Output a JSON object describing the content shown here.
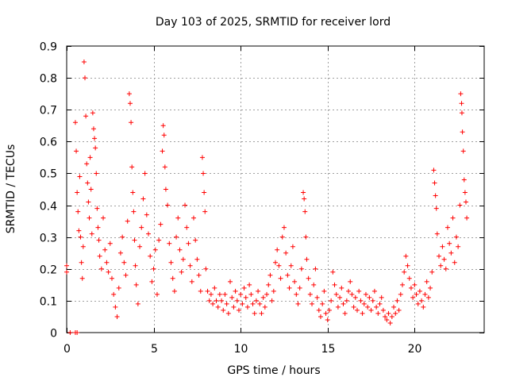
{
  "chart_data": {
    "type": "scatter",
    "title": "Day 103 of 2025, SRMTID for receiver lord",
    "xlabel": "GPS time / hours",
    "ylabel": "SRMTID / TECUs",
    "xlim": [
      0,
      24
    ],
    "ylim": [
      0,
      0.9
    ],
    "xticks": [
      0,
      5,
      10,
      15,
      20
    ],
    "yticks": [
      0,
      0.1,
      0.2,
      0.3,
      0.4,
      0.5,
      0.6,
      0.7,
      0.8,
      0.9
    ],
    "grid": true,
    "legend": "none",
    "marker": "+",
    "color": "#ff0000",
    "series": [
      {
        "name": "SRMTID",
        "points": [
          [
            0.0,
            0.21
          ],
          [
            0.0,
            0.19
          ],
          [
            0.2,
            0.0
          ],
          [
            0.5,
            0.0
          ],
          [
            0.6,
            0.0
          ],
          [
            0.5,
            0.66
          ],
          [
            0.55,
            0.57
          ],
          [
            0.6,
            0.44
          ],
          [
            0.65,
            0.38
          ],
          [
            0.7,
            0.32
          ],
          [
            0.75,
            0.49
          ],
          [
            0.8,
            0.3
          ],
          [
            0.85,
            0.22
          ],
          [
            0.9,
            0.17
          ],
          [
            0.95,
            0.27
          ],
          [
            1.0,
            0.85
          ],
          [
            1.05,
            0.8
          ],
          [
            1.1,
            0.68
          ],
          [
            1.15,
            0.53
          ],
          [
            1.2,
            0.47
          ],
          [
            1.25,
            0.41
          ],
          [
            1.3,
            0.36
          ],
          [
            1.35,
            0.55
          ],
          [
            1.4,
            0.45
          ],
          [
            1.45,
            0.31
          ],
          [
            1.5,
            0.69
          ],
          [
            1.55,
            0.64
          ],
          [
            1.6,
            0.61
          ],
          [
            1.65,
            0.58
          ],
          [
            1.7,
            0.5
          ],
          [
            1.75,
            0.39
          ],
          [
            1.8,
            0.33
          ],
          [
            1.85,
            0.29
          ],
          [
            1.9,
            0.24
          ],
          [
            2.0,
            0.2
          ],
          [
            2.1,
            0.36
          ],
          [
            2.2,
            0.26
          ],
          [
            2.3,
            0.22
          ],
          [
            2.4,
            0.19
          ],
          [
            2.5,
            0.28
          ],
          [
            2.6,
            0.17
          ],
          [
            2.7,
            0.12
          ],
          [
            2.8,
            0.08
          ],
          [
            2.9,
            0.05
          ],
          [
            3.0,
            0.14
          ],
          [
            3.1,
            0.25
          ],
          [
            3.2,
            0.3
          ],
          [
            3.3,
            0.22
          ],
          [
            3.4,
            0.18
          ],
          [
            3.5,
            0.35
          ],
          [
            3.6,
            0.75
          ],
          [
            3.65,
            0.72
          ],
          [
            3.7,
            0.66
          ],
          [
            3.75,
            0.52
          ],
          [
            3.8,
            0.44
          ],
          [
            3.85,
            0.38
          ],
          [
            3.9,
            0.29
          ],
          [
            3.95,
            0.21
          ],
          [
            4.0,
            0.15
          ],
          [
            4.1,
            0.09
          ],
          [
            4.2,
            0.27
          ],
          [
            4.3,
            0.33
          ],
          [
            4.4,
            0.42
          ],
          [
            4.5,
            0.5
          ],
          [
            4.6,
            0.37
          ],
          [
            4.7,
            0.31
          ],
          [
            4.8,
            0.24
          ],
          [
            4.9,
            0.16
          ],
          [
            5.0,
            0.2
          ],
          [
            5.1,
            0.26
          ],
          [
            5.2,
            0.12
          ],
          [
            5.3,
            0.29
          ],
          [
            5.4,
            0.34
          ],
          [
            5.5,
            0.57
          ],
          [
            5.55,
            0.65
          ],
          [
            5.6,
            0.62
          ],
          [
            5.65,
            0.52
          ],
          [
            5.7,
            0.45
          ],
          [
            5.8,
            0.4
          ],
          [
            5.9,
            0.28
          ],
          [
            6.0,
            0.22
          ],
          [
            6.1,
            0.17
          ],
          [
            6.2,
            0.13
          ],
          [
            6.3,
            0.3
          ],
          [
            6.4,
            0.36
          ],
          [
            6.5,
            0.26
          ],
          [
            6.6,
            0.19
          ],
          [
            6.7,
            0.23
          ],
          [
            6.8,
            0.4
          ],
          [
            6.9,
            0.33
          ],
          [
            7.0,
            0.28
          ],
          [
            7.1,
            0.21
          ],
          [
            7.2,
            0.16
          ],
          [
            7.3,
            0.36
          ],
          [
            7.4,
            0.29
          ],
          [
            7.5,
            0.23
          ],
          [
            7.6,
            0.18
          ],
          [
            7.7,
            0.13
          ],
          [
            7.8,
            0.55
          ],
          [
            7.85,
            0.5
          ],
          [
            7.9,
            0.44
          ],
          [
            7.95,
            0.38
          ],
          [
            8.0,
            0.2
          ],
          [
            8.1,
            0.13
          ],
          [
            8.2,
            0.1
          ],
          [
            8.3,
            0.12
          ],
          [
            8.4,
            0.09
          ],
          [
            8.5,
            0.14
          ],
          [
            8.6,
            0.1
          ],
          [
            8.7,
            0.08
          ],
          [
            8.8,
            0.12
          ],
          [
            8.9,
            0.1
          ],
          [
            9.0,
            0.07
          ],
          [
            9.1,
            0.12
          ],
          [
            9.2,
            0.09
          ],
          [
            9.3,
            0.06
          ],
          [
            9.4,
            0.16
          ],
          [
            9.5,
            0.11
          ],
          [
            9.6,
            0.08
          ],
          [
            9.7,
            0.13
          ],
          [
            9.8,
            0.1
          ],
          [
            9.9,
            0.07
          ],
          [
            10.0,
            0.12
          ],
          [
            10.1,
            0.09
          ],
          [
            10.2,
            0.14
          ],
          [
            10.3,
            0.11
          ],
          [
            10.4,
            0.08
          ],
          [
            10.5,
            0.15
          ],
          [
            10.6,
            0.12
          ],
          [
            10.7,
            0.09
          ],
          [
            10.8,
            0.06
          ],
          [
            10.9,
            0.1
          ],
          [
            11.0,
            0.13
          ],
          [
            11.1,
            0.09
          ],
          [
            11.2,
            0.06
          ],
          [
            11.3,
            0.11
          ],
          [
            11.4,
            0.08
          ],
          [
            11.5,
            0.12
          ],
          [
            11.6,
            0.15
          ],
          [
            11.7,
            0.18
          ],
          [
            11.8,
            0.1
          ],
          [
            11.9,
            0.13
          ],
          [
            12.0,
            0.22
          ],
          [
            12.1,
            0.26
          ],
          [
            12.2,
            0.21
          ],
          [
            12.3,
            0.17
          ],
          [
            12.4,
            0.3
          ],
          [
            12.5,
            0.33
          ],
          [
            12.6,
            0.25
          ],
          [
            12.7,
            0.18
          ],
          [
            12.8,
            0.14
          ],
          [
            12.9,
            0.21
          ],
          [
            13.0,
            0.27
          ],
          [
            13.1,
            0.16
          ],
          [
            13.2,
            0.12
          ],
          [
            13.3,
            0.09
          ],
          [
            13.4,
            0.14
          ],
          [
            13.5,
            0.2
          ],
          [
            13.6,
            0.44
          ],
          [
            13.65,
            0.42
          ],
          [
            13.7,
            0.38
          ],
          [
            13.75,
            0.3
          ],
          [
            13.8,
            0.23
          ],
          [
            13.9,
            0.17
          ],
          [
            14.0,
            0.12
          ],
          [
            14.1,
            0.09
          ],
          [
            14.2,
            0.15
          ],
          [
            14.3,
            0.2
          ],
          [
            14.4,
            0.11
          ],
          [
            14.5,
            0.07
          ],
          [
            14.6,
            0.05
          ],
          [
            14.7,
            0.09
          ],
          [
            14.8,
            0.13
          ],
          [
            14.9,
            0.06
          ],
          [
            15.0,
            0.04
          ],
          [
            15.1,
            0.07
          ],
          [
            15.2,
            0.1
          ],
          [
            15.3,
            0.19
          ],
          [
            15.4,
            0.15
          ],
          [
            15.5,
            0.12
          ],
          [
            15.6,
            0.08
          ],
          [
            15.7,
            0.11
          ],
          [
            15.8,
            0.14
          ],
          [
            15.9,
            0.09
          ],
          [
            16.0,
            0.06
          ],
          [
            16.1,
            0.1
          ],
          [
            16.2,
            0.13
          ],
          [
            16.3,
            0.16
          ],
          [
            16.4,
            0.12
          ],
          [
            16.5,
            0.08
          ],
          [
            16.6,
            0.11
          ],
          [
            16.7,
            0.07
          ],
          [
            16.8,
            0.13
          ],
          [
            16.9,
            0.1
          ],
          [
            17.0,
            0.06
          ],
          [
            17.1,
            0.09
          ],
          [
            17.2,
            0.12
          ],
          [
            17.3,
            0.08
          ],
          [
            17.4,
            0.11
          ],
          [
            17.5,
            0.07
          ],
          [
            17.6,
            0.1
          ],
          [
            17.7,
            0.13
          ],
          [
            17.8,
            0.08
          ],
          [
            17.9,
            0.06
          ],
          [
            18.0,
            0.09
          ],
          [
            18.1,
            0.11
          ],
          [
            18.2,
            0.07
          ],
          [
            18.3,
            0.05
          ],
          [
            18.4,
            0.04
          ],
          [
            18.5,
            0.06
          ],
          [
            18.6,
            0.03
          ],
          [
            18.7,
            0.05
          ],
          [
            18.8,
            0.08
          ],
          [
            18.9,
            0.06
          ],
          [
            19.0,
            0.1
          ],
          [
            19.1,
            0.07
          ],
          [
            19.2,
            0.12
          ],
          [
            19.3,
            0.15
          ],
          [
            19.4,
            0.19
          ],
          [
            19.5,
            0.24
          ],
          [
            19.6,
            0.21
          ],
          [
            19.7,
            0.17
          ],
          [
            19.8,
            0.14
          ],
          [
            19.9,
            0.11
          ],
          [
            20.0,
            0.15
          ],
          [
            20.1,
            0.12
          ],
          [
            20.2,
            0.09
          ],
          [
            20.3,
            0.13
          ],
          [
            20.4,
            0.1
          ],
          [
            20.5,
            0.08
          ],
          [
            20.6,
            0.12
          ],
          [
            20.7,
            0.16
          ],
          [
            20.8,
            0.11
          ],
          [
            20.9,
            0.14
          ],
          [
            21.0,
            0.19
          ],
          [
            21.1,
            0.51
          ],
          [
            21.15,
            0.47
          ],
          [
            21.2,
            0.43
          ],
          [
            21.25,
            0.39
          ],
          [
            21.3,
            0.31
          ],
          [
            21.4,
            0.24
          ],
          [
            21.5,
            0.21
          ],
          [
            21.6,
            0.27
          ],
          [
            21.7,
            0.23
          ],
          [
            21.8,
            0.2
          ],
          [
            21.9,
            0.33
          ],
          [
            22.0,
            0.28
          ],
          [
            22.1,
            0.25
          ],
          [
            22.2,
            0.36
          ],
          [
            22.3,
            0.22
          ],
          [
            22.4,
            0.3
          ],
          [
            22.5,
            0.27
          ],
          [
            22.6,
            0.4
          ],
          [
            22.65,
            0.75
          ],
          [
            22.7,
            0.72
          ],
          [
            22.72,
            0.69
          ],
          [
            22.75,
            0.63
          ],
          [
            22.8,
            0.57
          ],
          [
            22.85,
            0.48
          ],
          [
            22.9,
            0.44
          ],
          [
            22.95,
            0.41
          ],
          [
            23.0,
            0.36
          ]
        ]
      }
    ]
  }
}
